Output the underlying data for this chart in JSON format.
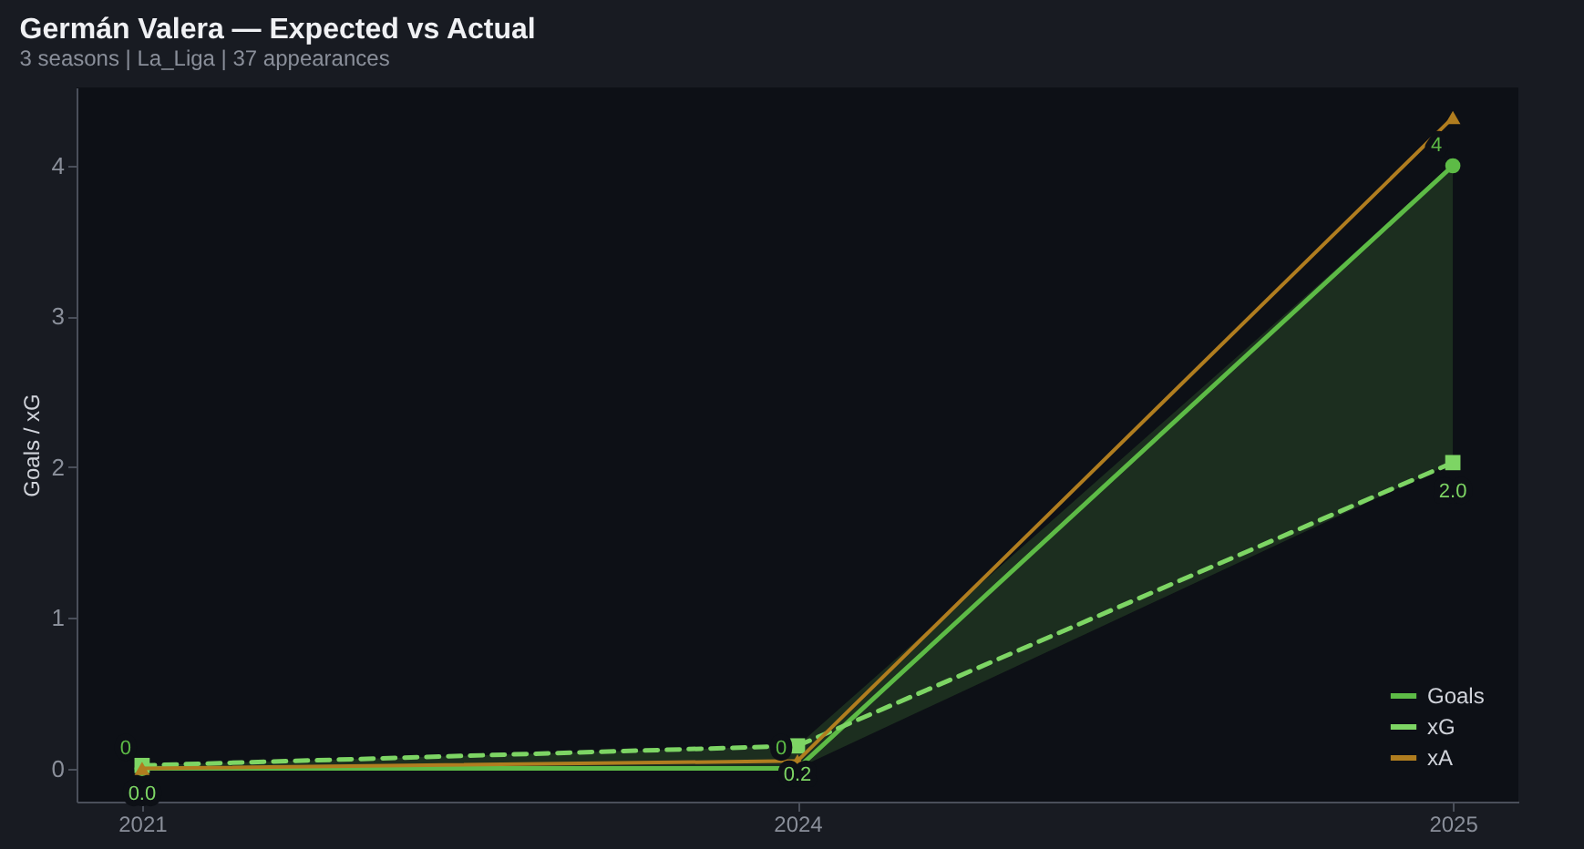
{
  "chart_data": {
    "type": "line",
    "title": "Germán Valera — Expected vs Actual",
    "subtitle": "3 seasons | La_Liga | 37 appearances",
    "ylabel": "Goals / xG",
    "categories": [
      "2021",
      "2024",
      "2025"
    ],
    "series": [
      {
        "name": "Goals",
        "color": "#5dbb46",
        "values": [
          0,
          0,
          4
        ],
        "marker": "circle",
        "line_style": "solid",
        "value_labels": [
          "0",
          "0",
          "4"
        ],
        "lower": [
          0,
          0,
          2.03
        ],
        "upper": [
          0.02,
          0.15,
          4
        ]
      },
      {
        "name": "xG",
        "color": "#7dd564",
        "values": [
          0.02,
          0.15,
          2.03
        ],
        "marker": "square",
        "line_style": "dashed",
        "value_labels": [
          "0.0",
          "0.2",
          "2.0"
        ]
      },
      {
        "name": "xA",
        "color": "#b07d1f",
        "values": [
          0,
          0.05,
          4.32
        ],
        "marker": "triangle",
        "line_style": "solid"
      }
    ],
    "ylim": [
      -0.22,
      4.52
    ],
    "yticks": [
      0,
      1,
      2,
      3,
      4
    ],
    "grid": false,
    "legend": "bottom right"
  }
}
